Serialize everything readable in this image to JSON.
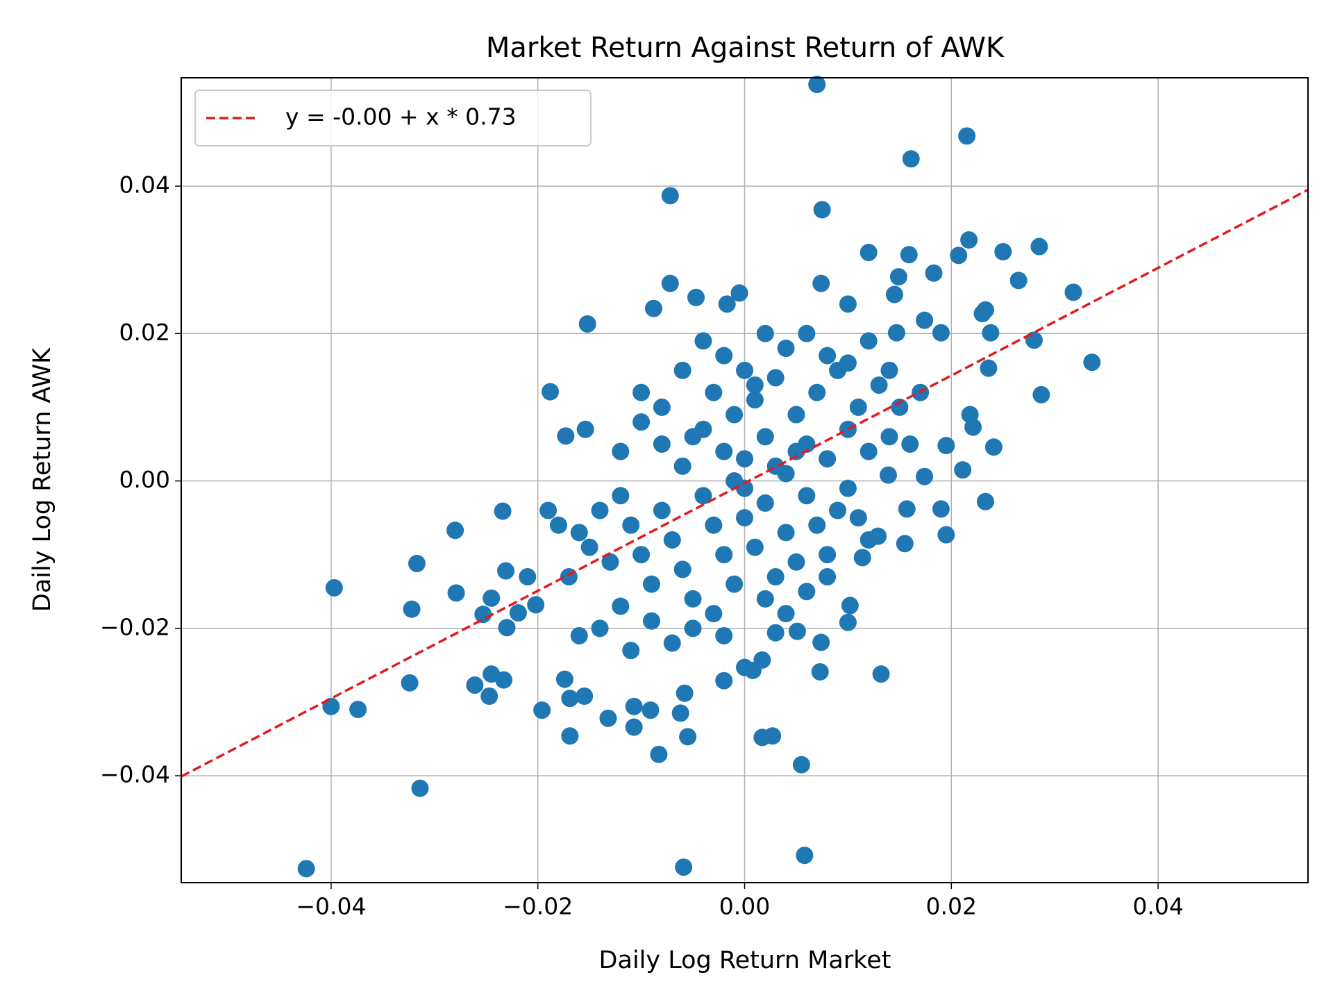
{
  "chart_data": {
    "type": "scatter",
    "title": "Market Return Against Return of AWK",
    "x_label": "Daily Log Return Market",
    "y_label": "Daily Log Return AWK",
    "xlim": [
      -0.0545,
      0.0545
    ],
    "ylim": [
      -0.0545,
      0.0547
    ],
    "xticks": [
      {
        "value": -0.04,
        "label": "−0.04"
      },
      {
        "value": -0.02,
        "label": "−0.02"
      },
      {
        "value": 0,
        "label": "0.00"
      },
      0.02,
      0.04
    ],
    "yticks": [
      {
        "value": -0.04,
        "label": "−0.04"
      },
      {
        "value": -0.02,
        "label": "−0.02"
      },
      {
        "value": 0,
        "label": "0.00"
      },
      0.02,
      0.04
    ],
    "grid": true,
    "legend": "upper left",
    "series": [
      {
        "type": "scatter",
        "color": "#1f77b4",
        "x": [
          0.007,
          0.0215,
          0.0161,
          -0.0072,
          0.0075,
          0.0217,
          0.012,
          0.0159,
          0.0285,
          0.025,
          0.0207,
          0.0183,
          0.0265,
          0.0149,
          -0.0072,
          0.0074,
          0.0318,
          -0.0005,
          -0.0047,
          0.0145,
          0.01,
          -0.0088,
          -0.0017,
          -0.0152,
          0.0336,
          0.0287,
          0.0241,
          0.0233,
          0.0233,
          0.0236,
          0.028,
          -0.0188,
          -0.0173,
          -0.0154,
          -0.0234,
          -0.028,
          -0.0397,
          -0.0317,
          -0.0322,
          -0.0279,
          -0.04,
          -0.0374,
          -0.0324,
          -0.0314,
          -0.0424,
          -0.0261,
          -0.0247,
          -0.0233,
          -0.0245,
          -0.0245,
          -0.0231,
          -0.0253,
          -0.023,
          -0.021,
          -0.0202,
          -0.0219,
          -0.0196,
          -0.0174,
          -0.0169,
          -0.0169,
          -0.0155,
          -0.0132,
          -0.0107,
          -0.0107,
          -0.0091,
          -0.0083,
          -0.0062,
          -0.0058,
          -0.0055,
          -0.0059,
          0.0058,
          0.0055,
          0.0017,
          0.0027,
          -0.002,
          0.0,
          0.0008,
          0.0017,
          0.0073,
          0.0132,
          0.0102,
          0.01,
          0.0074,
          0.0051,
          0.003,
          0.0155,
          0.0157,
          0.0195,
          0.019,
          0.0211,
          0.0195,
          0.0221,
          0.0218,
          0.0174,
          0.0139,
          0.0114,
          0.0129,
          0.023,
          0.0238,
          0.019,
          0.0174,
          0.0147,
          -0.01,
          -0.008,
          -0.006,
          -0.004,
          -0.003,
          -0.002,
          -0.001,
          0.0,
          0.001,
          0.002,
          0.003,
          0.004,
          0.005,
          0.006,
          0.007,
          0.008,
          0.009,
          0.01,
          0.011,
          0.012,
          0.013,
          0.014,
          0.015,
          0.016,
          0.017,
          -0.012,
          -0.011,
          -0.01,
          -0.009,
          -0.008,
          -0.007,
          -0.006,
          -0.005,
          -0.004,
          -0.003,
          -0.002,
          -0.001,
          0.0,
          0.001,
          0.002,
          0.003,
          0.004,
          0.005,
          0.006,
          0.007,
          0.008,
          0.009,
          0.01,
          0.011,
          0.012,
          -0.014,
          -0.015,
          -0.016,
          -0.013,
          -0.017,
          -0.018,
          -0.019,
          -0.012,
          -0.011,
          -0.009,
          -0.007,
          -0.005,
          -0.003,
          -0.002,
          -0.014,
          -0.016,
          -0.012,
          -0.01,
          -0.008,
          -0.006,
          -0.004,
          -0.002,
          0.0,
          0.002,
          0.004,
          0.006,
          0.008,
          0.01,
          0.012,
          0.014,
          0.0,
          0.003,
          -0.001,
          0.005,
          0.002,
          0.004,
          0.006,
          0.008,
          0.001,
          -0.005
        ],
        "values": [
          0.0538,
          0.0468,
          0.0437,
          0.0387,
          0.0368,
          0.0327,
          0.031,
          0.0307,
          0.0318,
          0.0311,
          0.0306,
          0.0282,
          0.0272,
          0.0277,
          0.0268,
          0.0268,
          0.0256,
          0.0255,
          0.0249,
          0.0253,
          0.024,
          0.0234,
          0.024,
          0.0213,
          0.0161,
          0.0117,
          0.0046,
          -0.0028,
          0.0232,
          0.0153,
          0.0191,
          0.0121,
          0.0061,
          0.007,
          -0.0041,
          -0.0067,
          -0.0145,
          -0.0112,
          -0.0174,
          -0.0152,
          -0.0306,
          -0.031,
          -0.0274,
          -0.0417,
          -0.0526,
          -0.0277,
          -0.0292,
          -0.027,
          -0.0262,
          -0.0159,
          -0.0122,
          -0.0181,
          -0.0199,
          -0.013,
          -0.0168,
          -0.0179,
          -0.0311,
          -0.0269,
          -0.0295,
          -0.0346,
          -0.0292,
          -0.0322,
          -0.0306,
          -0.0334,
          -0.0311,
          -0.0371,
          -0.0315,
          -0.0288,
          -0.0347,
          -0.0524,
          -0.0508,
          -0.0385,
          -0.0348,
          -0.0346,
          -0.0271,
          -0.0253,
          -0.0257,
          -0.0243,
          -0.0259,
          -0.0262,
          -0.0169,
          -0.0192,
          -0.0219,
          -0.0204,
          -0.0206,
          -0.0085,
          -0.0038,
          -0.0073,
          -0.0038,
          0.0015,
          0.0048,
          0.0073,
          0.009,
          0.0006,
          0.0008,
          -0.0104,
          -0.0075,
          0.0227,
          0.0201,
          0.0201,
          0.0218,
          0.0201,
          0.008,
          0.005,
          0.002,
          0.007,
          0.012,
          0.004,
          0.009,
          0.003,
          0.011,
          0.006,
          0.014,
          0.001,
          0.009,
          0.005,
          0.012,
          0.003,
          0.015,
          0.007,
          0.01,
          0.004,
          0.013,
          0.006,
          0.01,
          0.005,
          0.012,
          -0.002,
          -0.006,
          -0.01,
          -0.014,
          -0.004,
          -0.008,
          -0.012,
          -0.016,
          -0.002,
          -0.006,
          -0.01,
          -0.014,
          -0.005,
          -0.009,
          -0.003,
          -0.013,
          -0.007,
          -0.011,
          -0.002,
          -0.006,
          -0.01,
          -0.004,
          -0.001,
          -0.005,
          -0.008,
          -0.004,
          -0.009,
          -0.007,
          -0.011,
          -0.013,
          -0.006,
          -0.004,
          -0.017,
          -0.023,
          -0.019,
          -0.022,
          -0.02,
          -0.018,
          -0.021,
          -0.02,
          -0.021,
          0.004,
          0.012,
          0.01,
          0.015,
          0.019,
          0.017,
          0.015,
          0.02,
          0.018,
          0.02,
          0.017,
          0.016,
          0.019,
          0.015,
          -0.001,
          0.002,
          0.0,
          0.004,
          -0.016,
          -0.018,
          -0.015,
          -0.013,
          0.013,
          0.006
        ]
      },
      {
        "type": "line",
        "name": "y = -0.00 + x * 0.73",
        "color": "#e41a1c",
        "dash": true,
        "x": [
          -0.0545,
          0.0545
        ],
        "values": [
          -0.0401,
          0.0395
        ]
      }
    ]
  }
}
